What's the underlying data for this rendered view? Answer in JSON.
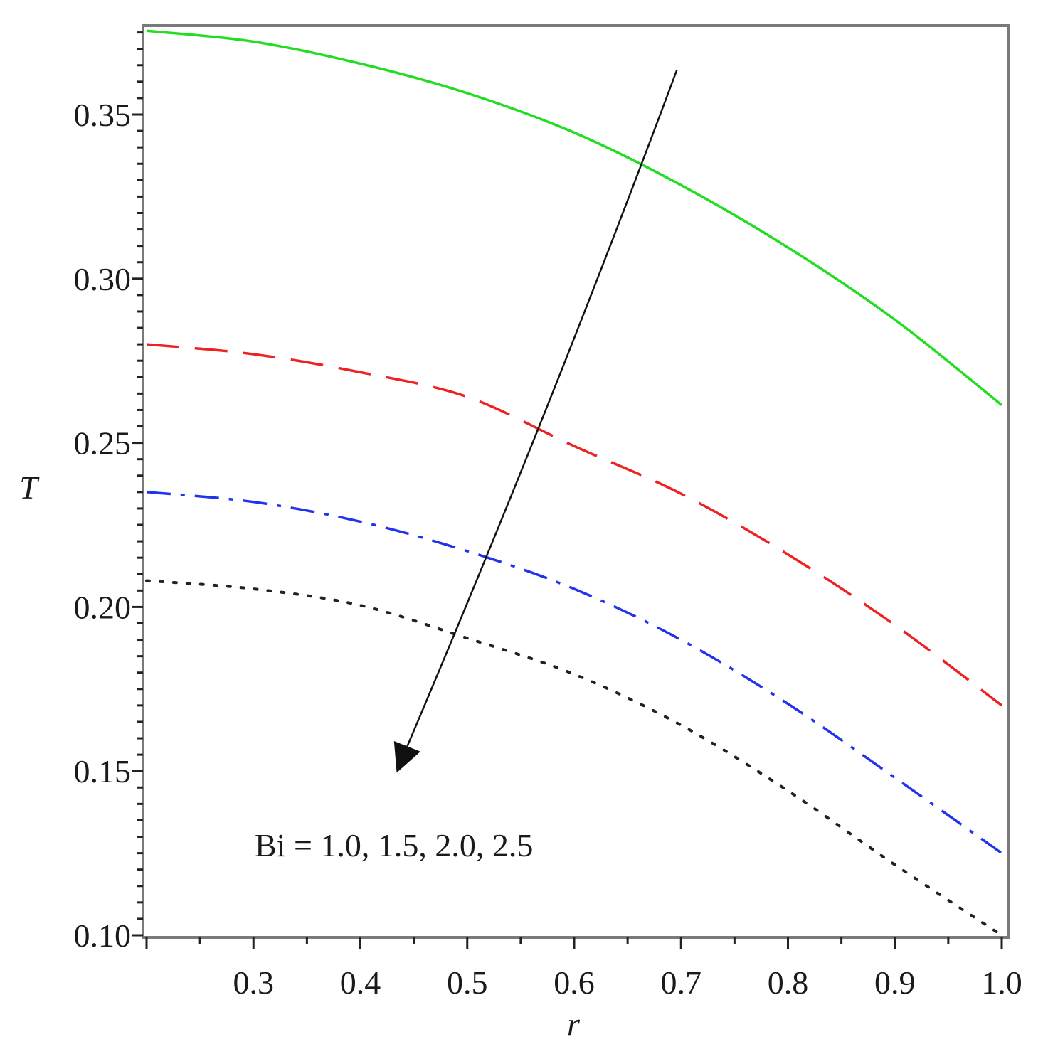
{
  "chart_data": {
    "type": "line",
    "title": "",
    "xlabel": "r",
    "ylabel": "T",
    "xlim": [
      0.2,
      1.0
    ],
    "ylim": [
      0.1,
      0.376
    ],
    "xticks": [
      "0.3",
      "0.4",
      "0.5",
      "0.6",
      "0.7",
      "0.8",
      "0.9",
      "1.0"
    ],
    "yticks": [
      "0.10",
      "0.15",
      "0.20",
      "0.25",
      "0.30",
      "0.35"
    ],
    "grid": false,
    "annotation": "Bi = 1.0, 1.5, 2.0, 2.5",
    "series": [
      {
        "style": "solid",
        "color": "#22dd22",
        "points": [
          [
            0.2,
            0.3755
          ],
          [
            0.3,
            0.3722
          ],
          [
            0.4,
            0.3655
          ],
          [
            0.5,
            0.3565
          ],
          [
            0.6,
            0.3445
          ],
          [
            0.7,
            0.3285
          ],
          [
            0.8,
            0.3095
          ],
          [
            0.9,
            0.2875
          ],
          [
            1.0,
            0.2615
          ]
        ]
      },
      {
        "style": "dash",
        "color": "#ee2222",
        "points": [
          [
            0.2,
            0.28
          ],
          [
            0.3,
            0.277
          ],
          [
            0.4,
            0.2715
          ],
          [
            0.5,
            0.264
          ],
          [
            0.6,
            0.249
          ],
          [
            0.7,
            0.2345
          ],
          [
            0.8,
            0.216
          ],
          [
            0.9,
            0.1945
          ],
          [
            1.0,
            0.17
          ]
        ]
      },
      {
        "style": "dashdot",
        "color": "#2233ee",
        "points": [
          [
            0.2,
            0.235
          ],
          [
            0.3,
            0.232
          ],
          [
            0.4,
            0.226
          ],
          [
            0.5,
            0.217
          ],
          [
            0.6,
            0.2055
          ],
          [
            0.7,
            0.19
          ],
          [
            0.8,
            0.1705
          ],
          [
            0.9,
            0.148
          ],
          [
            1.0,
            0.125
          ]
        ]
      },
      {
        "style": "dot",
        "color": "#222222",
        "points": [
          [
            0.2,
            0.208
          ],
          [
            0.3,
            0.2055
          ],
          [
            0.4,
            0.2005
          ],
          [
            0.5,
            0.1905
          ],
          [
            0.6,
            0.1795
          ],
          [
            0.7,
            0.164
          ],
          [
            0.8,
            0.144
          ],
          [
            0.9,
            0.1215
          ],
          [
            1.0,
            0.1
          ]
        ]
      }
    ],
    "arrow": {
      "from": [
        0.696,
        0.3635
      ],
      "to": [
        0.434,
        0.1495
      ],
      "color": "#111111"
    }
  }
}
